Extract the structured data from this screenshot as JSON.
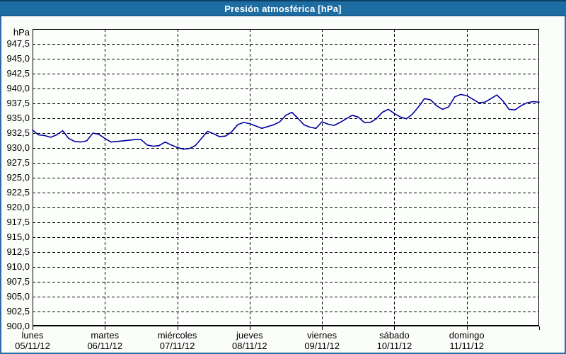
{
  "window": {
    "title": "Presión atmosférica [hPa]"
  },
  "colors": {
    "titlebar_bg": "#1d6da3",
    "titlebar_top_border": "#0d3e63",
    "window_border": "#2d6da5",
    "window_bg": "#fbfdfa",
    "plot_bg": "#fdfffd",
    "grid": "#000000",
    "line": "#0000a0",
    "text": "#000000"
  },
  "chart_data": {
    "type": "line",
    "title": "Presión atmosférica [hPa]",
    "series_name": "Presión atmosférica",
    "y_unit": "hPa",
    "ylim": [
      900,
      950
    ],
    "y_tick_step": 2.5,
    "grid": "dashed",
    "legend": "none",
    "y_ticks": [
      {
        "label": "947,5",
        "value": 947.5
      },
      {
        "label": "945,0",
        "value": 945.0
      },
      {
        "label": "942,5",
        "value": 942.5
      },
      {
        "label": "940,0",
        "value": 940.0
      },
      {
        "label": "937,5",
        "value": 937.5
      },
      {
        "label": "935,0",
        "value": 935.0
      },
      {
        "label": "932,5",
        "value": 932.5
      },
      {
        "label": "930,0",
        "value": 930.0
      },
      {
        "label": "927,5",
        "value": 927.5
      },
      {
        "label": "925,0",
        "value": 925.0
      },
      {
        "label": "922,5",
        "value": 922.5
      },
      {
        "label": "920,0",
        "value": 920.0
      },
      {
        "label": "917,5",
        "value": 917.5
      },
      {
        "label": "915,0",
        "value": 915.0
      },
      {
        "label": "912,5",
        "value": 912.5
      },
      {
        "label": "910,0",
        "value": 910.0
      },
      {
        "label": "907,5",
        "value": 907.5
      },
      {
        "label": "905,0",
        "value": 905.0
      },
      {
        "label": "902,5",
        "value": 902.5
      },
      {
        "label": "900,0",
        "value": 900.0
      }
    ],
    "x_days": [
      {
        "name": "lunes",
        "date": "05/11/12"
      },
      {
        "name": "martes",
        "date": "06/11/12"
      },
      {
        "name": "miércoles",
        "date": "07/11/12"
      },
      {
        "name": "jueves",
        "date": "08/11/12"
      },
      {
        "name": "viernes",
        "date": "09/11/12"
      },
      {
        "name": "sábado",
        "date": "10/11/12"
      },
      {
        "name": "domingo",
        "date": "11/11/12"
      }
    ],
    "x_start": "05/11/12 00:00",
    "x_step_hours": 2,
    "x_total_hours": 168,
    "values": [
      933.0,
      932.2,
      932.1,
      931.8,
      932.2,
      932.9,
      931.6,
      931.1,
      931.0,
      931.2,
      932.5,
      932.3,
      931.6,
      931.0,
      931.1,
      931.2,
      931.3,
      931.4,
      931.4,
      930.5,
      930.3,
      930.4,
      931.0,
      930.5,
      930.1,
      929.8,
      929.9,
      930.4,
      931.6,
      932.8,
      932.4,
      931.9,
      932.0,
      932.7,
      933.9,
      934.3,
      934.1,
      933.7,
      933.3,
      933.6,
      933.9,
      934.4,
      935.5,
      936.0,
      935.0,
      933.9,
      933.5,
      933.3,
      934.4,
      934.0,
      933.8,
      934.3,
      934.9,
      935.5,
      935.2,
      934.3,
      934.3,
      934.9,
      936.0,
      936.5,
      935.8,
      935.2,
      934.9,
      935.7,
      936.9,
      938.3,
      938.1,
      937.1,
      936.5,
      936.9,
      938.6,
      939.0,
      938.8,
      938.2,
      937.6,
      937.7,
      938.3,
      938.9,
      937.9,
      936.5,
      936.4,
      937.1,
      937.6,
      937.8,
      937.7
    ]
  }
}
